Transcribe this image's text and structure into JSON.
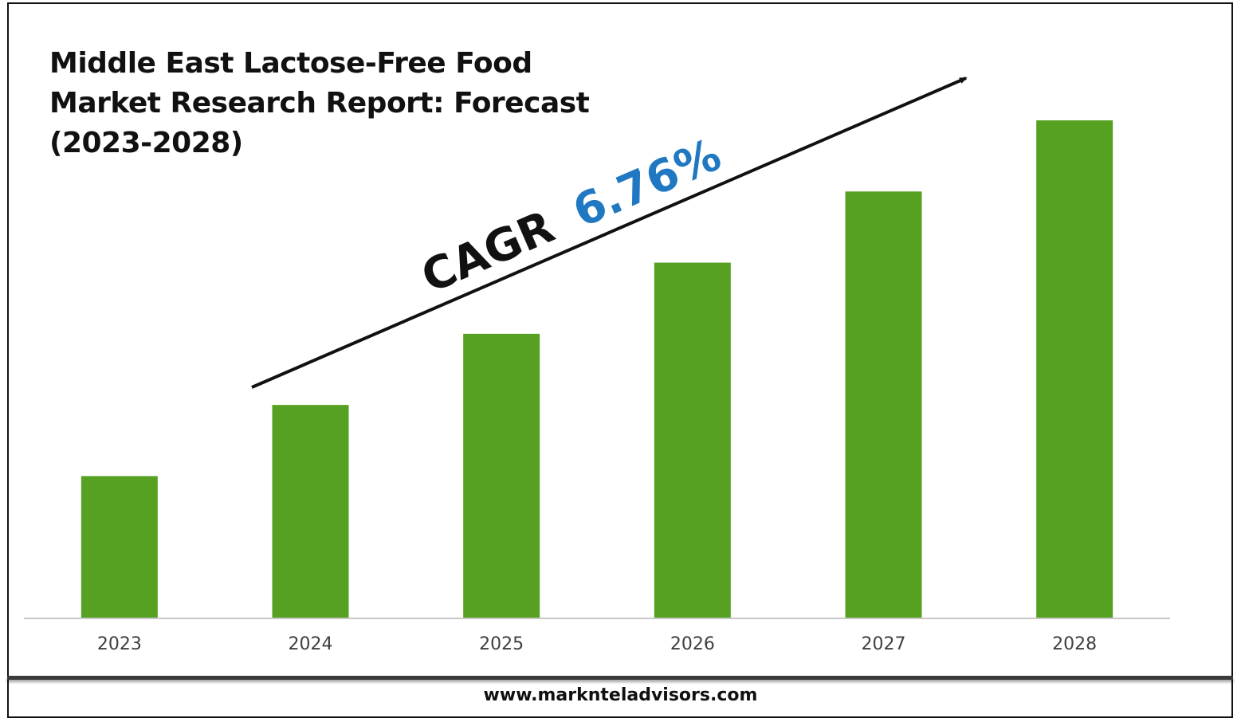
{
  "title_lines": [
    "Middle East Lactose-Free Food",
    "Market Research Report: Forecast",
    "(2023-2028)"
  ],
  "cagr": {
    "label": "CAGR",
    "value": "6.76%",
    "value_color": "#1f78c1"
  },
  "footer": {
    "website": "www.marknteladvisors.com"
  },
  "colors": {
    "bar": "#56a022",
    "axis": "#c8c8c8",
    "tick_label": "#404040"
  },
  "chart_data": {
    "type": "bar",
    "categories": [
      "2023",
      "2024",
      "2025",
      "2026",
      "2027",
      "2028"
    ],
    "values": [
      1.0,
      1.5,
      2.0,
      2.5,
      3.0,
      3.5
    ],
    "ylim": [
      0,
      3.5
    ],
    "grid": false,
    "legend": "none"
  }
}
